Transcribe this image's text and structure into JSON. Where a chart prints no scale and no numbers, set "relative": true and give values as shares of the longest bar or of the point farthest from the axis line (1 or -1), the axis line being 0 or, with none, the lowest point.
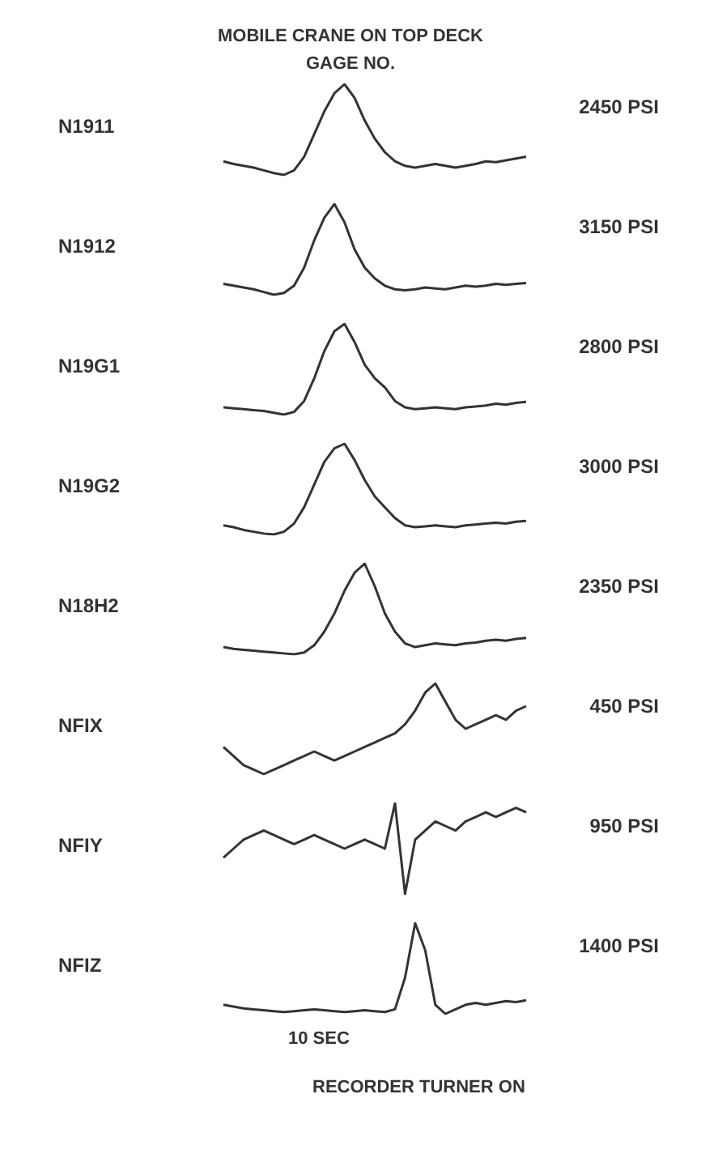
{
  "chart_data": [
    {
      "type": "line",
      "title": "MOBILE CRANE ON TOP DECK",
      "subtitle": "GAGE NO.",
      "ylabel": "N1911",
      "relative": true,
      "color": "#333333",
      "annotations": [
        "2450 PSI"
      ],
      "categories": [
        null,
        null,
        null,
        null,
        null,
        null,
        null,
        null,
        null,
        null,
        null,
        null,
        null,
        null,
        null,
        null,
        null,
        null,
        null,
        null,
        null,
        null,
        null,
        null,
        null,
        null,
        null,
        null,
        null,
        null,
        null
      ],
      "values": [
        0.15,
        0.12,
        0.1,
        0.08,
        0.05,
        0.02,
        0,
        0.05,
        0.2,
        0.45,
        0.7,
        0.9,
        1,
        0.85,
        0.6,
        0.4,
        0.25,
        0.15,
        0.1,
        0.08,
        0.1,
        0.12,
        0.1,
        0.08,
        0.1,
        0.12,
        0.15,
        0.14,
        0.16,
        0.18,
        0.2
      ]
    },
    {
      "type": "line",
      "ylabel": "N1912",
      "relative": true,
      "color": "#333333",
      "annotations": [
        "3150 PSI"
      ],
      "categories": [
        null,
        null,
        null,
        null,
        null,
        null,
        null,
        null,
        null,
        null,
        null,
        null,
        null,
        null,
        null,
        null,
        null,
        null,
        null,
        null,
        null,
        null,
        null,
        null,
        null,
        null,
        null,
        null,
        null,
        null,
        null
      ],
      "values": [
        0.12,
        0.1,
        0.08,
        0.06,
        0.03,
        0,
        0.02,
        0.1,
        0.3,
        0.6,
        0.85,
        1,
        0.8,
        0.5,
        0.3,
        0.18,
        0.1,
        0.06,
        0.05,
        0.06,
        0.08,
        0.07,
        0.06,
        0.08,
        0.1,
        0.09,
        0.1,
        0.12,
        0.11,
        0.12,
        0.13
      ]
    },
    {
      "type": "line",
      "ylabel": "N19G1",
      "relative": true,
      "color": "#333333",
      "annotations": [
        "2800 PSI"
      ],
      "categories": [
        null,
        null,
        null,
        null,
        null,
        null,
        null,
        null,
        null,
        null,
        null,
        null,
        null,
        null,
        null,
        null,
        null,
        null,
        null,
        null,
        null,
        null,
        null,
        null,
        null,
        null,
        null,
        null,
        null,
        null,
        null
      ],
      "values": [
        0.08,
        0.07,
        0.06,
        0.05,
        0.04,
        0.02,
        0,
        0.03,
        0.15,
        0.4,
        0.7,
        0.92,
        1,
        0.8,
        0.55,
        0.4,
        0.3,
        0.15,
        0.08,
        0.06,
        0.07,
        0.08,
        0.07,
        0.06,
        0.08,
        0.09,
        0.1,
        0.12,
        0.11,
        0.13,
        0.14
      ]
    },
    {
      "type": "line",
      "ylabel": "N19G2",
      "relative": true,
      "color": "#333333",
      "annotations": [
        "3000 PSI"
      ],
      "categories": [
        null,
        null,
        null,
        null,
        null,
        null,
        null,
        null,
        null,
        null,
        null,
        null,
        null,
        null,
        null,
        null,
        null,
        null,
        null,
        null,
        null,
        null,
        null,
        null,
        null,
        null,
        null,
        null,
        null,
        null,
        null
      ],
      "values": [
        0.1,
        0.08,
        0.05,
        0.03,
        0.01,
        0,
        0.03,
        0.12,
        0.3,
        0.55,
        0.8,
        0.95,
        1,
        0.82,
        0.6,
        0.42,
        0.3,
        0.18,
        0.1,
        0.08,
        0.09,
        0.1,
        0.09,
        0.08,
        0.1,
        0.11,
        0.12,
        0.13,
        0.12,
        0.14,
        0.15
      ]
    },
    {
      "type": "line",
      "ylabel": "N18H2",
      "relative": true,
      "color": "#333333",
      "annotations": [
        "2350 PSI"
      ],
      "categories": [
        null,
        null,
        null,
        null,
        null,
        null,
        null,
        null,
        null,
        null,
        null,
        null,
        null,
        null,
        null,
        null,
        null,
        null,
        null,
        null,
        null,
        null,
        null,
        null,
        null,
        null,
        null,
        null,
        null,
        null,
        null
      ],
      "values": [
        0.08,
        0.06,
        0.05,
        0.04,
        0.03,
        0.02,
        0.01,
        0,
        0.02,
        0.1,
        0.25,
        0.45,
        0.7,
        0.9,
        1,
        0.75,
        0.45,
        0.25,
        0.12,
        0.08,
        0.1,
        0.12,
        0.11,
        0.1,
        0.12,
        0.13,
        0.15,
        0.16,
        0.15,
        0.17,
        0.18
      ]
    },
    {
      "type": "line",
      "ylabel": "NFIX",
      "relative": true,
      "color": "#333333",
      "annotations": [
        "450 PSI"
      ],
      "categories": [
        null,
        null,
        null,
        null,
        null,
        null,
        null,
        null,
        null,
        null,
        null,
        null,
        null,
        null,
        null,
        null,
        null,
        null,
        null,
        null,
        null,
        null,
        null,
        null,
        null,
        null,
        null,
        null,
        null,
        null,
        null
      ],
      "values": [
        0.3,
        0.2,
        0.1,
        0.05,
        0,
        0.05,
        0.1,
        0.15,
        0.2,
        0.25,
        0.2,
        0.15,
        0.2,
        0.25,
        0.3,
        0.35,
        0.4,
        0.45,
        0.55,
        0.7,
        0.9,
        1,
        0.8,
        0.6,
        0.5,
        0.55,
        0.6,
        0.65,
        0.6,
        0.7,
        0.75
      ]
    },
    {
      "type": "line",
      "ylabel": "NFIY",
      "relative": true,
      "color": "#333333",
      "annotations": [
        "950 PSI"
      ],
      "categories": [
        null,
        null,
        null,
        null,
        null,
        null,
        null,
        null,
        null,
        null,
        null,
        null,
        null,
        null,
        null,
        null,
        null,
        null,
        null,
        null,
        null,
        null,
        null,
        null,
        null,
        null,
        null,
        null,
        null,
        null,
        null
      ],
      "values": [
        0.4,
        0.5,
        0.6,
        0.65,
        0.7,
        0.65,
        0.6,
        0.55,
        0.6,
        0.65,
        0.6,
        0.55,
        0.5,
        0.55,
        0.6,
        0.55,
        0.5,
        1,
        0,
        0.6,
        0.7,
        0.8,
        0.75,
        0.7,
        0.8,
        0.85,
        0.9,
        0.85,
        0.9,
        0.95,
        0.9
      ]
    },
    {
      "type": "line",
      "ylabel": "NFIZ",
      "relative": true,
      "color": "#333333",
      "annotations": [
        "1400 PSI",
        "10 SEC",
        "RECORDER TURNER ON"
      ],
      "categories": [
        null,
        null,
        null,
        null,
        null,
        null,
        null,
        null,
        null,
        null,
        null,
        null,
        null,
        null,
        null,
        null,
        null,
        null,
        null,
        null,
        null,
        null,
        null,
        null,
        null,
        null,
        null,
        null,
        null,
        null,
        null
      ],
      "values": [
        0.1,
        0.08,
        0.06,
        0.05,
        0.04,
        0.03,
        0.02,
        0.03,
        0.04,
        0.05,
        0.04,
        0.03,
        0.02,
        0.03,
        0.04,
        0.03,
        0.02,
        0.05,
        0.4,
        1,
        0.7,
        0.1,
        0,
        0.05,
        0.1,
        0.12,
        0.1,
        0.12,
        0.14,
        0.13,
        0.15
      ]
    }
  ]
}
